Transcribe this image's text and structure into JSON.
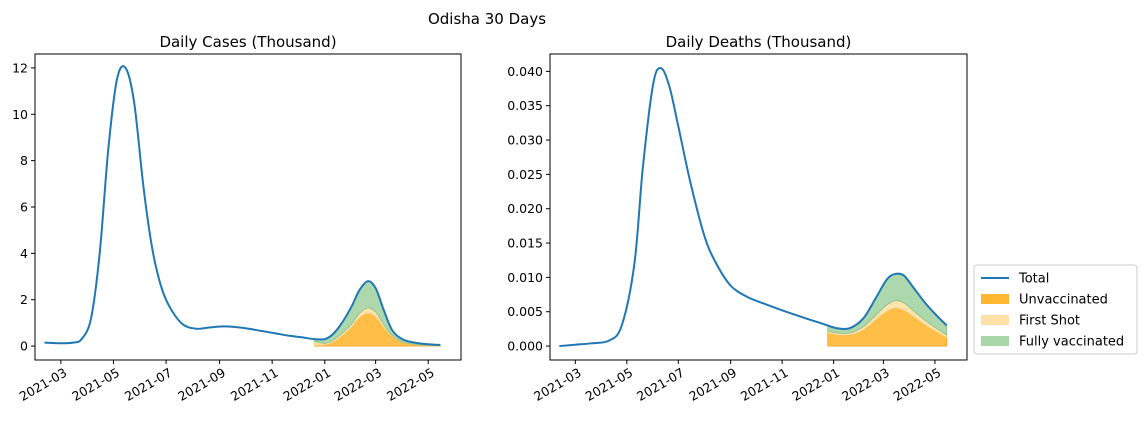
{
  "figure": {
    "suptitle": "Odisha 30 Days"
  },
  "colors": {
    "total": "#1f77b4",
    "unvaccinated": "#ffb732",
    "first_shot": "#fde1a8",
    "fully_vaccinated": "#a9d6a9"
  },
  "legend": {
    "placement": "right of figure, lower",
    "entries": [
      {
        "label": "Total",
        "kind": "line",
        "color_key": "total"
      },
      {
        "label": "Unvaccinated",
        "kind": "patch",
        "color_key": "unvaccinated"
      },
      {
        "label": "First Shot",
        "kind": "patch",
        "color_key": "first_shot"
      },
      {
        "label": "Fully vaccinated",
        "kind": "patch",
        "color_key": "fully_vaccinated"
      }
    ]
  },
  "chart_data": [
    {
      "type": "area",
      "title": "Daily Cases (Thousand)",
      "xlabel": "",
      "ylabel": "",
      "x_ticks": [
        "2021-03",
        "2021-05",
        "2021-07",
        "2021-09",
        "2021-11",
        "2022-01",
        "2022-03",
        "2022-05"
      ],
      "y_ticks": [
        "0",
        "2",
        "4",
        "6",
        "8",
        "10",
        "12"
      ],
      "xlim": [
        "2021-01-30",
        "2022-06-08"
      ],
      "ylim": [
        -0.6,
        12.6
      ],
      "grid": false,
      "total": {
        "x": [
          "2021-02-10",
          "2021-03-01",
          "2021-03-15",
          "2021-03-25",
          "2021-04-05",
          "2021-04-15",
          "2021-04-25",
          "2021-05-05",
          "2021-05-15",
          "2021-05-25",
          "2021-06-05",
          "2021-06-15",
          "2021-06-25",
          "2021-07-05",
          "2021-07-20",
          "2021-08-05",
          "2021-08-20",
          "2021-09-05",
          "2021-09-20",
          "2021-10-05",
          "2021-10-20",
          "2021-11-05",
          "2021-11-20",
          "2021-12-05",
          "2021-12-20",
          "2022-01-01",
          "2022-01-10",
          "2022-01-20",
          "2022-02-01",
          "2022-02-10",
          "2022-02-20",
          "2022-03-01",
          "2022-03-10",
          "2022-03-20",
          "2022-04-01",
          "2022-04-15",
          "2022-05-01",
          "2022-05-15"
        ],
        "y": [
          0.15,
          0.12,
          0.15,
          0.3,
          1.2,
          4.0,
          8.5,
          11.5,
          12.0,
          10.5,
          6.8,
          4.2,
          2.6,
          1.7,
          0.95,
          0.75,
          0.8,
          0.85,
          0.82,
          0.75,
          0.65,
          0.55,
          0.45,
          0.38,
          0.3,
          0.3,
          0.5,
          0.95,
          1.7,
          2.4,
          2.8,
          2.5,
          1.6,
          0.7,
          0.3,
          0.15,
          0.08,
          0.05
        ]
      },
      "breakdown": {
        "x": [
          "2021-12-20",
          "2022-01-01",
          "2022-01-10",
          "2022-01-20",
          "2022-02-01",
          "2022-02-10",
          "2022-02-20",
          "2022-03-01",
          "2022-03-10",
          "2022-03-20",
          "2022-04-01",
          "2022-04-15",
          "2022-05-01",
          "2022-05-15"
        ],
        "unvaccinated": [
          0.02,
          0.05,
          0.15,
          0.4,
          0.8,
          1.2,
          1.4,
          1.25,
          0.8,
          0.4,
          0.15,
          0.06,
          0.02,
          0.01
        ],
        "first_shot": [
          0.2,
          0.07,
          0.09,
          0.12,
          0.15,
          0.2,
          0.25,
          0.22,
          0.15,
          0.07,
          0.03,
          0.02,
          0.01,
          0.01
        ],
        "fully_vaccinated": [
          0.08,
          0.18,
          0.26,
          0.43,
          0.75,
          1.0,
          1.15,
          1.03,
          0.65,
          0.23,
          0.12,
          0.07,
          0.05,
          0.03
        ]
      }
    },
    {
      "type": "area",
      "title": "Daily Deaths (Thousand)",
      "xlabel": "",
      "ylabel": "",
      "x_ticks": [
        "2021-03",
        "2021-05",
        "2021-07",
        "2021-09",
        "2021-11",
        "2022-01",
        "2022-03",
        "2022-05"
      ],
      "y_ticks": [
        "0.000",
        "0.005",
        "0.010",
        "0.015",
        "0.020",
        "0.025",
        "0.030",
        "0.035",
        "0.040"
      ],
      "xlim": [
        "2021-01-30",
        "2022-06-08"
      ],
      "ylim": [
        -0.00203,
        0.04253
      ],
      "grid": false,
      "total": {
        "x": [
          "2021-02-10",
          "2021-03-01",
          "2021-03-20",
          "2021-04-10",
          "2021-04-25",
          "2021-05-10",
          "2021-05-20",
          "2021-06-01",
          "2021-06-10",
          "2021-06-20",
          "2021-07-01",
          "2021-07-15",
          "2021-08-01",
          "2021-08-15",
          "2021-09-01",
          "2021-09-20",
          "2021-10-10",
          "2021-11-01",
          "2021-11-20",
          "2021-12-10",
          "2021-12-25",
          "2022-01-05",
          "2022-01-20",
          "2022-02-05",
          "2022-02-20",
          "2022-03-05",
          "2022-03-15",
          "2022-03-25",
          "2022-04-05",
          "2022-04-20",
          "2022-05-05",
          "2022-05-15"
        ],
        "y": [
          0.0,
          0.0002,
          0.0004,
          0.0008,
          0.003,
          0.012,
          0.026,
          0.038,
          0.0405,
          0.038,
          0.032,
          0.024,
          0.016,
          0.012,
          0.0088,
          0.0072,
          0.0062,
          0.0052,
          0.0044,
          0.0036,
          0.003,
          0.0026,
          0.0026,
          0.004,
          0.007,
          0.0097,
          0.0105,
          0.0103,
          0.0086,
          0.0062,
          0.0042,
          0.003
        ]
      },
      "breakdown": {
        "x": [
          "2021-12-25",
          "2022-01-05",
          "2022-01-20",
          "2022-02-05",
          "2022-02-20",
          "2022-03-05",
          "2022-03-15",
          "2022-03-25",
          "2022-04-05",
          "2022-04-20",
          "2022-05-05",
          "2022-05-15"
        ],
        "unvaccinated": [
          0.0019,
          0.0016,
          0.0016,
          0.0023,
          0.0038,
          0.005,
          0.0055,
          0.0052,
          0.0043,
          0.003,
          0.0019,
          0.0012
        ],
        "first_shot": [
          0.0003,
          0.0003,
          0.0003,
          0.0005,
          0.0007,
          0.001,
          0.0011,
          0.0011,
          0.0009,
          0.0007,
          0.0005,
          0.0004
        ],
        "fully_vaccinated": [
          0.0008,
          0.0007,
          0.0007,
          0.0012,
          0.0025,
          0.0037,
          0.0039,
          0.004,
          0.0034,
          0.0025,
          0.0018,
          0.0014
        ]
      }
    }
  ]
}
